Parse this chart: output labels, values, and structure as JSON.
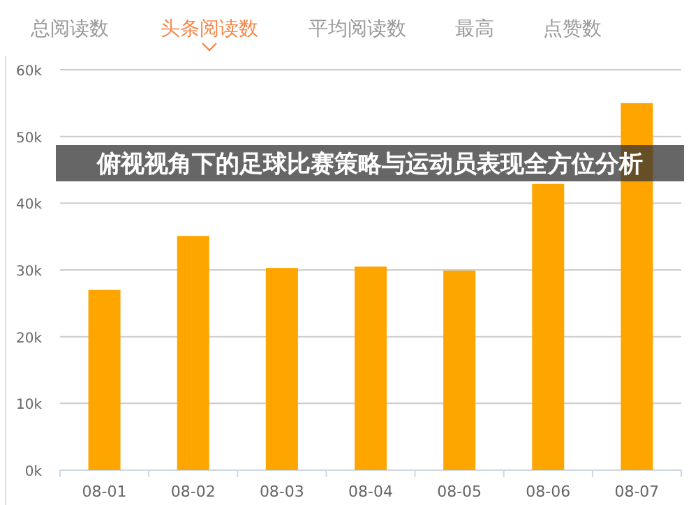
{
  "chart_data": {
    "type": "bar",
    "title": "俯视视角下的足球比赛策略与运动员表现全方位分析",
    "annotations": [
      "总阅读数",
      "头条阅读数",
      "平均阅读数",
      "最高",
      "点赞数"
    ],
    "categories": [
      "08-01",
      "08-02",
      "08-03",
      "08-04",
      "08-05",
      "08-06",
      "08-07"
    ],
    "values": [
      27000,
      35100,
      30300,
      30500,
      29900,
      42900,
      55000
    ],
    "color": "#fea500",
    "ylim": [
      0,
      60000
    ],
    "yticks": [
      {
        "value": 0,
        "label": "0k"
      },
      {
        "value": 10000,
        "label": "10k"
      },
      {
        "value": 20000,
        "label": "20k"
      },
      {
        "value": 30000,
        "label": "30k"
      },
      {
        "value": 40000,
        "label": "40k"
      },
      {
        "value": 50000,
        "label": "50k"
      },
      {
        "value": 60000,
        "label": "60k"
      }
    ],
    "grid": "y"
  }
}
